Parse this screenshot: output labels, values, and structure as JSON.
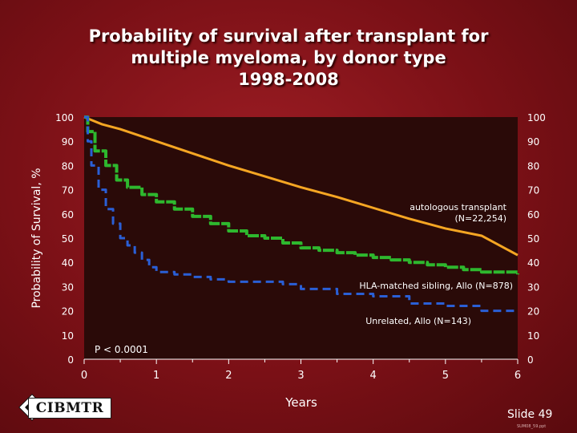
{
  "title_lines": [
    "Probability of survival after transplant for",
    "multiple myeloma, by donor type",
    "1998-2008"
  ],
  "chart_data": {
    "type": "line",
    "xlabel": "Years",
    "ylabel": "Probability of Survival, %",
    "xlim": [
      0,
      6
    ],
    "ylim": [
      0,
      100
    ],
    "x_ticks": [
      "0",
      "1",
      "2",
      "3",
      "4",
      "5",
      "6"
    ],
    "y_ticks": [
      "0",
      "10",
      "20",
      "30",
      "40",
      "50",
      "60",
      "70",
      "80",
      "90",
      "100"
    ],
    "annotation": "P < 0.0001",
    "series": [
      {
        "name": "autologous transplant (N=22,254)",
        "label_line1": "autologous transplant",
        "label_line2": "(N=22,254)",
        "color": "#f5a623",
        "style": "solid",
        "x": [
          0,
          0.25,
          0.5,
          1,
          1.5,
          2,
          2.5,
          3,
          3.5,
          4,
          4.5,
          5,
          5.5,
          6
        ],
        "y": [
          100,
          97,
          95,
          90,
          85,
          80,
          75.5,
          71,
          67,
          62.5,
          58,
          54,
          51,
          43
        ]
      },
      {
        "name": "HLA-matched sibling, Allo (N=878)",
        "label_line1": "HLA-matched sibling, Allo (N=878)",
        "color": "#2eb82e",
        "style": "solid",
        "x": [
          0,
          0.05,
          0.15,
          0.3,
          0.45,
          0.6,
          0.8,
          1,
          1.25,
          1.5,
          1.75,
          2,
          2.25,
          2.5,
          2.75,
          3,
          3.25,
          3.5,
          3.75,
          4,
          4.25,
          4.5,
          4.75,
          5,
          5.25,
          5.5,
          6
        ],
        "y": [
          100,
          94,
          86,
          80,
          74,
          71,
          68,
          65,
          62,
          59,
          56,
          53,
          51,
          50,
          48,
          46,
          45,
          44,
          43,
          42,
          41,
          40,
          39,
          38,
          37,
          36,
          35
        ]
      },
      {
        "name": "Unrelated, Allo (N=143)",
        "label_line1": "Unrelated, Allo (N=143)",
        "color": "#2a5fd6",
        "style": "dashed",
        "x": [
          0,
          0.05,
          0.1,
          0.2,
          0.3,
          0.4,
          0.5,
          0.6,
          0.7,
          0.8,
          0.9,
          1,
          1.25,
          1.5,
          1.75,
          2,
          2.25,
          2.5,
          2.75,
          3,
          3.5,
          4,
          4.5,
          5,
          5.5,
          6
        ],
        "y": [
          100,
          90,
          80,
          70,
          62,
          56,
          50,
          47,
          44,
          41,
          38,
          36,
          35,
          34,
          33,
          32,
          32,
          32,
          31,
          29,
          27,
          26,
          23,
          22,
          20,
          20
        ]
      }
    ]
  },
  "logo_text": "CIBMTR",
  "slide_label": "Slide 49",
  "slide_code": "SUM08_59.ppt"
}
